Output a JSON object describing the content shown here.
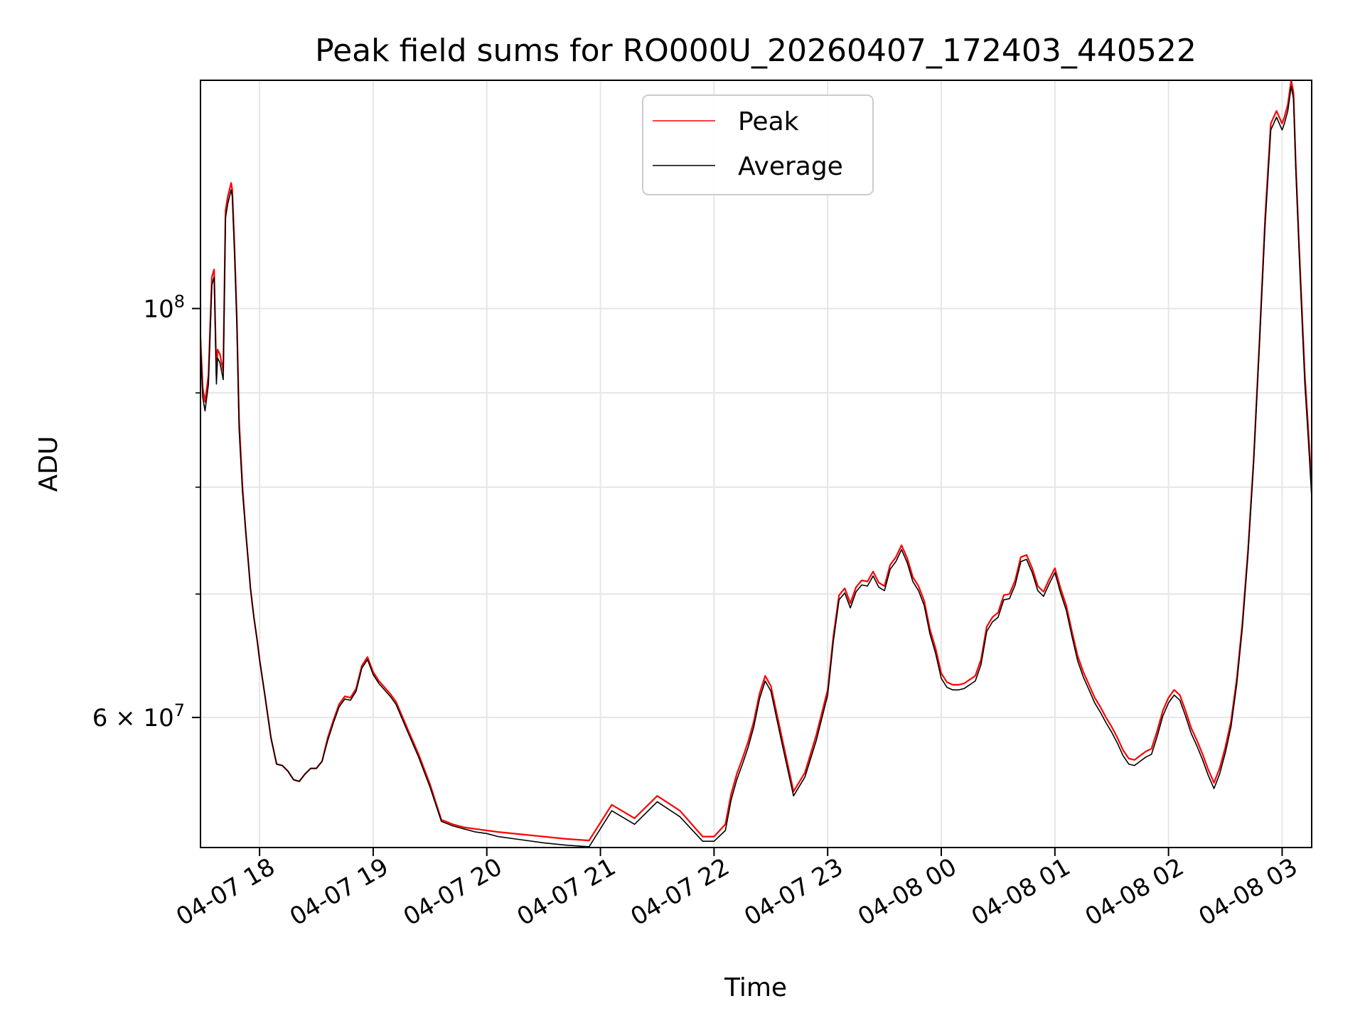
{
  "chart_data": {
    "type": "line",
    "title": "Peak field sums for RO000U_20260407_172403_440522",
    "xlabel": "Time",
    "ylabel": "ADU",
    "y_scale": "log",
    "x_unit": "hours since 04-07 17:00",
    "xlim": [
      17.48,
      27.26
    ],
    "ylim": [
      51000000.0,
      133000000.0
    ],
    "grid": true,
    "legend_position": "upper-center",
    "x_ticks": [
      {
        "value": 18,
        "label": "04-07 18"
      },
      {
        "value": 19,
        "label": "04-07 19"
      },
      {
        "value": 20,
        "label": "04-07 20"
      },
      {
        "value": 21,
        "label": "04-07 21"
      },
      {
        "value": 22,
        "label": "04-07 22"
      },
      {
        "value": 23,
        "label": "04-07 23"
      },
      {
        "value": 24,
        "label": "04-08 00"
      },
      {
        "value": 25,
        "label": "04-08 01"
      },
      {
        "value": 26,
        "label": "04-08 02"
      },
      {
        "value": 27,
        "label": "04-08 03"
      }
    ],
    "y_major_ticks": [
      {
        "value": 100000000,
        "label": "10",
        "sup": "8"
      },
      {
        "value": 60000000,
        "label": "6 × 10",
        "sup": "7"
      }
    ],
    "y_minor_ticks": [
      70000000,
      80000000,
      90000000
    ],
    "series": [
      {
        "name": "Peak",
        "color": "#ff0000",
        "x": [
          17.48,
          17.5,
          17.52,
          17.55,
          17.58,
          17.6,
          17.62,
          17.63,
          17.65,
          17.68,
          17.7,
          17.72,
          17.75,
          17.76,
          17.78,
          17.8,
          17.82,
          17.85,
          17.88,
          17.9,
          17.92,
          17.95,
          17.98,
          18.0,
          18.05,
          18.1,
          18.15,
          18.2,
          18.25,
          18.3,
          18.35,
          18.4,
          18.45,
          18.5,
          18.55,
          18.6,
          18.65,
          18.7,
          18.75,
          18.8,
          18.85,
          18.9,
          18.95,
          19.0,
          19.05,
          19.1,
          19.15,
          19.2,
          19.3,
          19.4,
          19.5,
          19.6,
          19.7,
          19.8,
          19.9,
          20.0,
          20.1,
          20.3,
          20.5,
          20.7,
          20.9,
          21.1,
          21.3,
          21.5,
          21.7,
          21.9,
          22.0,
          22.1,
          22.15,
          22.2,
          22.25,
          22.3,
          22.35,
          22.4,
          22.45,
          22.5,
          22.6,
          22.7,
          22.8,
          22.9,
          23.0,
          23.05,
          23.1,
          23.15,
          23.2,
          23.25,
          23.3,
          23.35,
          23.4,
          23.45,
          23.5,
          23.55,
          23.6,
          23.65,
          23.7,
          23.75,
          23.8,
          23.85,
          23.9,
          23.95,
          24.0,
          24.05,
          24.1,
          24.15,
          24.2,
          24.25,
          24.3,
          24.35,
          24.4,
          24.45,
          24.5,
          24.55,
          24.6,
          24.65,
          24.7,
          24.75,
          24.8,
          24.85,
          24.9,
          24.95,
          25.0,
          25.05,
          25.1,
          25.15,
          25.2,
          25.25,
          25.3,
          25.35,
          25.4,
          25.45,
          25.5,
          25.55,
          25.6,
          25.65,
          25.7,
          25.75,
          25.8,
          25.85,
          25.9,
          25.95,
          26.0,
          26.05,
          26.1,
          26.15,
          26.2,
          26.25,
          26.3,
          26.35,
          26.4,
          26.45,
          26.5,
          26.55,
          26.6,
          26.65,
          26.7,
          26.75,
          26.8,
          26.85,
          26.9,
          26.95,
          27.0,
          27.02,
          27.05,
          27.08,
          27.1,
          27.12,
          27.15,
          27.18,
          27.2,
          27.22,
          27.24,
          27.26
        ],
        "y": [
          96500000,
          90500000,
          89000000,
          92000000,
          104000000,
          105000000,
          92000000,
          95000000,
          94500000,
          92500000,
          113000000,
          115000000,
          117000000,
          116000000,
          108000000,
          99000000,
          87000000,
          80000000,
          75500000,
          73000000,
          70500000,
          68000000,
          66000000,
          64500000,
          61500000,
          58500000,
          56600000,
          56500000,
          56100000,
          55500000,
          55400000,
          55900000,
          56300000,
          56300000,
          56800000,
          58500000,
          59800000,
          61000000,
          61600000,
          61500000,
          62200000,
          64000000,
          64700000,
          63500000,
          62800000,
          62300000,
          61800000,
          61200000,
          59200000,
          57300000,
          55200000,
          52800000,
          52500000,
          52300000,
          52200000,
          52100000,
          52000000,
          51850000,
          51700000,
          51550000,
          51450000,
          53800000,
          52900000,
          54400000,
          53400000,
          51700000,
          51700000,
          52500000,
          54500000,
          55900000,
          57000000,
          58200000,
          59700000,
          61800000,
          63200000,
          62400000,
          58400000,
          54700000,
          56000000,
          58700000,
          62100000,
          66400000,
          69900000,
          70500000,
          69200000,
          70600000,
          71200000,
          71100000,
          72000000,
          71000000,
          70700000,
          72600000,
          73300000,
          74400000,
          73200000,
          71500000,
          70700000,
          69400000,
          67000000,
          65400000,
          63400000,
          62700000,
          62500000,
          62500000,
          62600000,
          62900000,
          63200000,
          64500000,
          67200000,
          68000000,
          68400000,
          69900000,
          70000000,
          71200000,
          73300000,
          73500000,
          72300000,
          70700000,
          70200000,
          71300000,
          72300000,
          70500000,
          69000000,
          66800000,
          64800000,
          63500000,
          62500000,
          61500000,
          60800000,
          60000000,
          59300000,
          58500000,
          57600000,
          57000000,
          56900000,
          57200000,
          57500000,
          57700000,
          59000000,
          60500000,
          61500000,
          62100000,
          61700000,
          60500000,
          59200000,
          58300000,
          57300000,
          56200000,
          55300000,
          56300000,
          57800000,
          59700000,
          62900000,
          67500000,
          74000000,
          83000000,
          96000000,
          112000000,
          126000000,
          128000000,
          126000000,
          127000000,
          129000000,
          133000000,
          131000000,
          120000000,
          108000000,
          98000000,
          92000000,
          88000000,
          84000000,
          80000000
        ]
      },
      {
        "name": "Average",
        "color": "#000000",
        "x": [
          17.48,
          17.5,
          17.52,
          17.55,
          17.58,
          17.6,
          17.62,
          17.63,
          17.65,
          17.68,
          17.7,
          17.72,
          17.75,
          17.76,
          17.78,
          17.8,
          17.82,
          17.85,
          17.88,
          17.9,
          17.92,
          17.95,
          17.98,
          18.0,
          18.05,
          18.1,
          18.15,
          18.2,
          18.25,
          18.3,
          18.35,
          18.4,
          18.45,
          18.5,
          18.55,
          18.6,
          18.65,
          18.7,
          18.75,
          18.8,
          18.85,
          18.9,
          18.95,
          19.0,
          19.05,
          19.1,
          19.15,
          19.2,
          19.3,
          19.4,
          19.5,
          19.6,
          19.7,
          19.8,
          19.9,
          20.0,
          20.1,
          20.3,
          20.5,
          20.7,
          20.9,
          21.1,
          21.3,
          21.5,
          21.7,
          21.9,
          22.0,
          22.1,
          22.15,
          22.2,
          22.25,
          22.3,
          22.35,
          22.4,
          22.45,
          22.5,
          22.6,
          22.7,
          22.8,
          22.9,
          23.0,
          23.05,
          23.1,
          23.15,
          23.2,
          23.25,
          23.3,
          23.35,
          23.4,
          23.45,
          23.5,
          23.55,
          23.6,
          23.65,
          23.7,
          23.75,
          23.8,
          23.85,
          23.9,
          23.95,
          24.0,
          24.05,
          24.1,
          24.15,
          24.2,
          24.25,
          24.3,
          24.35,
          24.4,
          24.45,
          24.5,
          24.55,
          24.6,
          24.65,
          24.7,
          24.75,
          24.8,
          24.85,
          24.9,
          24.95,
          25.0,
          25.05,
          25.1,
          25.15,
          25.2,
          25.25,
          25.3,
          25.35,
          25.4,
          25.45,
          25.5,
          25.55,
          25.6,
          25.65,
          25.7,
          25.75,
          25.8,
          25.85,
          25.9,
          25.95,
          26.0,
          26.05,
          26.1,
          26.15,
          26.2,
          26.25,
          26.3,
          26.35,
          26.4,
          26.45,
          26.5,
          26.55,
          26.6,
          26.65,
          26.7,
          26.75,
          26.8,
          26.85,
          26.9,
          26.95,
          27.0,
          27.02,
          27.05,
          27.08,
          27.1,
          27.12,
          27.15,
          27.18,
          27.2,
          27.22,
          27.24,
          27.26
        ],
        "y": [
          95500000,
          89500000,
          88000000,
          91000000,
          103000000,
          104000000,
          91000000,
          94000000,
          93500000,
          91500000,
          112000000,
          114000000,
          116000000,
          115000000,
          107000000,
          98000000,
          86000000,
          79500000,
          75500000,
          73000000,
          70500000,
          68000000,
          66000000,
          64500000,
          61500000,
          58500000,
          56600000,
          56500000,
          56100000,
          55500000,
          55400000,
          55900000,
          56300000,
          56300000,
          56800000,
          58300000,
          59600000,
          60800000,
          61400000,
          61300000,
          62000000,
          63800000,
          64500000,
          63300000,
          62600000,
          62100000,
          61600000,
          61000000,
          59000000,
          57100000,
          55000000,
          52700000,
          52400000,
          52200000,
          52000000,
          51900000,
          51700000,
          51500000,
          51300000,
          51150000,
          51050000,
          53400000,
          52500000,
          54000000,
          53000000,
          51400000,
          51400000,
          52100000,
          54100000,
          55500000,
          56600000,
          57800000,
          59300000,
          61400000,
          62800000,
          62000000,
          58000000,
          54400000,
          55700000,
          58300000,
          61700000,
          66000000,
          69500000,
          70100000,
          68800000,
          70200000,
          70800000,
          70700000,
          71600000,
          70600000,
          70300000,
          72200000,
          72900000,
          74000000,
          72800000,
          71100000,
          70300000,
          69000000,
          66600000,
          65000000,
          63000000,
          62300000,
          62100000,
          62100000,
          62200000,
          62500000,
          62800000,
          64100000,
          66800000,
          67600000,
          68000000,
          69500000,
          69600000,
          70800000,
          72900000,
          73100000,
          71900000,
          70300000,
          69800000,
          70900000,
          71900000,
          70100000,
          68600000,
          66400000,
          64400000,
          63100000,
          62100000,
          61100000,
          60400000,
          59600000,
          58900000,
          58100000,
          57200000,
          56600000,
          56500000,
          56800000,
          57100000,
          57300000,
          58600000,
          60100000,
          61100000,
          61700000,
          61300000,
          60100000,
          58800000,
          57900000,
          56900000,
          55800000,
          54900000,
          55900000,
          57400000,
          59300000,
          62500000,
          67100000,
          73600000,
          82600000,
          95500000,
          111000000,
          125000000,
          127000000,
          125000000,
          126000000,
          128000000,
          132000000,
          130000000,
          119000000,
          107000000,
          97000000,
          91000000,
          87000000,
          83000000,
          79000000
        ]
      }
    ]
  }
}
